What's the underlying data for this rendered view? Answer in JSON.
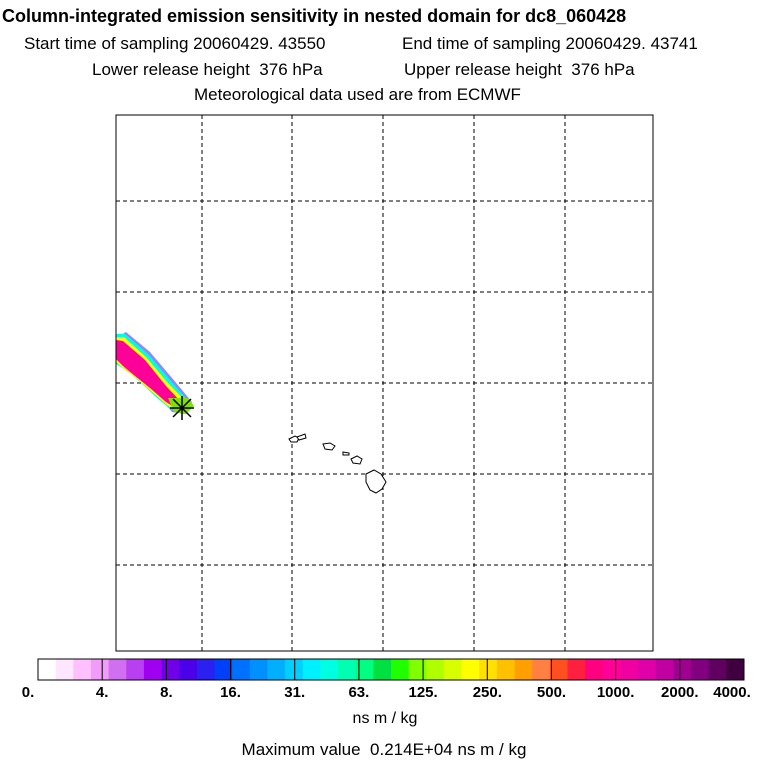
{
  "title": "Column-integrated emission sensitivity in nested domain for dc8_060428",
  "start_label": "Start time of sampling",
  "start_value": "20060429. 43550",
  "end_label": "End time of sampling",
  "end_value": "20060429. 43741",
  "lower_label": "Lower release height",
  "lower_value": "376 hPa",
  "upper_label": "Upper release height",
  "upper_value": "376 hPa",
  "met_line": "Meteorological data used are from ECMWF",
  "colorbar": {
    "tick_labels": [
      "0.",
      "4.",
      "8.",
      "16.",
      "31.",
      "63.",
      "125.",
      "250.",
      "500.",
      "1000.",
      "2000.",
      "4000."
    ],
    "colors": [
      "#ffffff",
      "#ffe6ff",
      "#ffc0ff",
      "#f09cf8",
      "#d070f0",
      "#b840f0",
      "#a000f0",
      "#7000e8",
      "#4a00e8",
      "#2a20f0",
      "#0040f8",
      "#0070ff",
      "#0090ff",
      "#00b0ff",
      "#00d0ff",
      "#00f0ff",
      "#00ffe0",
      "#00ffb0",
      "#00ff80",
      "#00e040",
      "#20ff00",
      "#80ff00",
      "#b0ff00",
      "#d8ff00",
      "#ffff00",
      "#ffe000",
      "#ffc000",
      "#ffa000",
      "#ff8040",
      "#ff5020",
      "#ff2040",
      "#ff0080",
      "#ff0099",
      "#f000a0",
      "#e000a8",
      "#c000a0",
      "#a00090",
      "#800080",
      "#600060",
      "#400040"
    ],
    "units": "ns m / kg"
  },
  "max_label": "Maximum value",
  "max_value": "0.214E+04 ns m / kg"
}
